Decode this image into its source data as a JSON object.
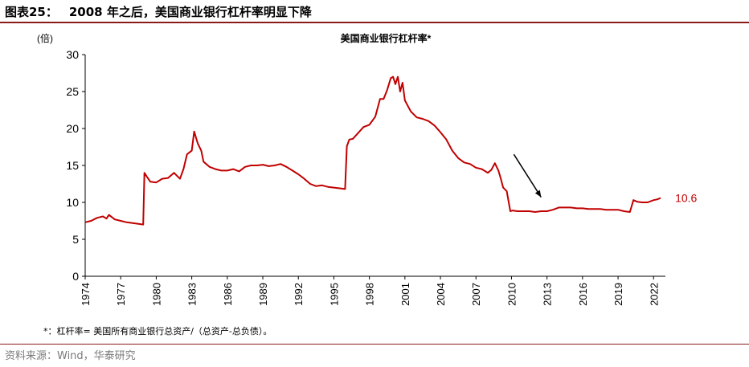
{
  "figure": {
    "label": "图表25：",
    "title": "2008 年之后，美国商业银行杠杆率明显下降"
  },
  "note": "*：杠杆率= 美国所有商业银行总资产/（总资产-总负债）。",
  "source": "资料来源：Wind，华泰研究",
  "colors": {
    "series": "#c00000",
    "accent": "#8b1a1a",
    "arrow": "#000000"
  },
  "chart_data": {
    "type": "line",
    "title": "美国商业银行杠杆率*",
    "ylabel": "(倍)",
    "xlabel": "",
    "ylim": [
      0,
      30
    ],
    "yticks": [
      0,
      5,
      10,
      15,
      20,
      25,
      30
    ],
    "xlim": [
      1974,
      2023
    ],
    "xticks": [
      1974,
      1977,
      1980,
      1983,
      1986,
      1989,
      1992,
      1995,
      1998,
      2001,
      2004,
      2007,
      2010,
      2013,
      2016,
      2019,
      2022
    ],
    "grid": false,
    "legend": "none",
    "end_label": "10.6",
    "annotations": [
      "downward arrow near 2010-2012 pointing to post-2008 decline"
    ],
    "series": [
      {
        "name": "",
        "x": [
          1974,
          1974.5,
          1975,
          1975.5,
          1975.8,
          1976,
          1976.5,
          1977,
          1977.5,
          1978,
          1978.5,
          1978.9,
          1979.0,
          1979.2,
          1979.5,
          1980,
          1980.5,
          1981,
          1981.5,
          1982,
          1982.3,
          1982.6,
          1983.0,
          1983.2,
          1983.5,
          1983.8,
          1984.0,
          1984.5,
          1985,
          1985.5,
          1986,
          1986.5,
          1987,
          1987.5,
          1988,
          1988.5,
          1989,
          1989.5,
          1990,
          1990.5,
          1991,
          1991.5,
          1992,
          1992.5,
          1993,
          1993.5,
          1994,
          1994.5,
          1995,
          1995.5,
          1995.95,
          1996.1,
          1996.3,
          1996.6,
          1997,
          1997.5,
          1998,
          1998.5,
          1998.9,
          1999.2,
          1999.5,
          1999.8,
          2000.0,
          2000.2,
          2000.4,
          2000.6,
          2000.8,
          2001,
          2001.5,
          2002,
          2002.5,
          2003,
          2003.5,
          2004,
          2004.5,
          2005,
          2005.5,
          2006,
          2006.5,
          2007,
          2007.5,
          2008,
          2008.3,
          2008.6,
          2008.9,
          2009.1,
          2009.3,
          2009.6,
          2009.9,
          2010.1,
          2010.5,
          2011,
          2011.5,
          2012,
          2012.5,
          2013,
          2013.5,
          2014,
          2014.5,
          2015,
          2015.5,
          2016,
          2016.5,
          2017,
          2017.5,
          2018,
          2018.5,
          2019,
          2019.5,
          2020.0,
          2020.3,
          2020.6,
          2021,
          2021.5,
          2022,
          2022.3,
          2022.6
        ],
        "values": [
          7.3,
          7.5,
          7.9,
          8.1,
          7.8,
          8.3,
          7.7,
          7.5,
          7.3,
          7.2,
          7.1,
          7.0,
          14.0,
          13.5,
          12.8,
          12.7,
          13.2,
          13.3,
          14.0,
          13.2,
          14.5,
          16.5,
          17.0,
          19.6,
          18.0,
          17.0,
          15.5,
          14.8,
          14.5,
          14.3,
          14.3,
          14.5,
          14.2,
          14.8,
          15.0,
          15.0,
          15.1,
          14.9,
          15.0,
          15.2,
          14.8,
          14.3,
          13.8,
          13.2,
          12.5,
          12.2,
          12.3,
          12.1,
          12.0,
          11.9,
          11.8,
          17.6,
          18.5,
          18.6,
          19.3,
          20.2,
          20.5,
          21.6,
          24.0,
          24.0,
          25.2,
          26.8,
          27.0,
          26.0,
          27.0,
          25.0,
          26.2,
          23.8,
          22.3,
          21.5,
          21.3,
          21.0,
          20.4,
          19.5,
          18.5,
          17.0,
          16.0,
          15.4,
          15.2,
          14.7,
          14.5,
          14.0,
          14.4,
          15.3,
          14.3,
          13.2,
          12.0,
          11.5,
          8.8,
          8.9,
          8.8,
          8.8,
          8.8,
          8.7,
          8.8,
          8.8,
          9.0,
          9.3,
          9.3,
          9.3,
          9.2,
          9.2,
          9.1,
          9.1,
          9.1,
          9.0,
          9.0,
          9.0,
          8.8,
          8.7,
          10.3,
          10.1,
          10.0,
          10.0,
          10.3,
          10.4,
          10.6
        ]
      }
    ]
  }
}
